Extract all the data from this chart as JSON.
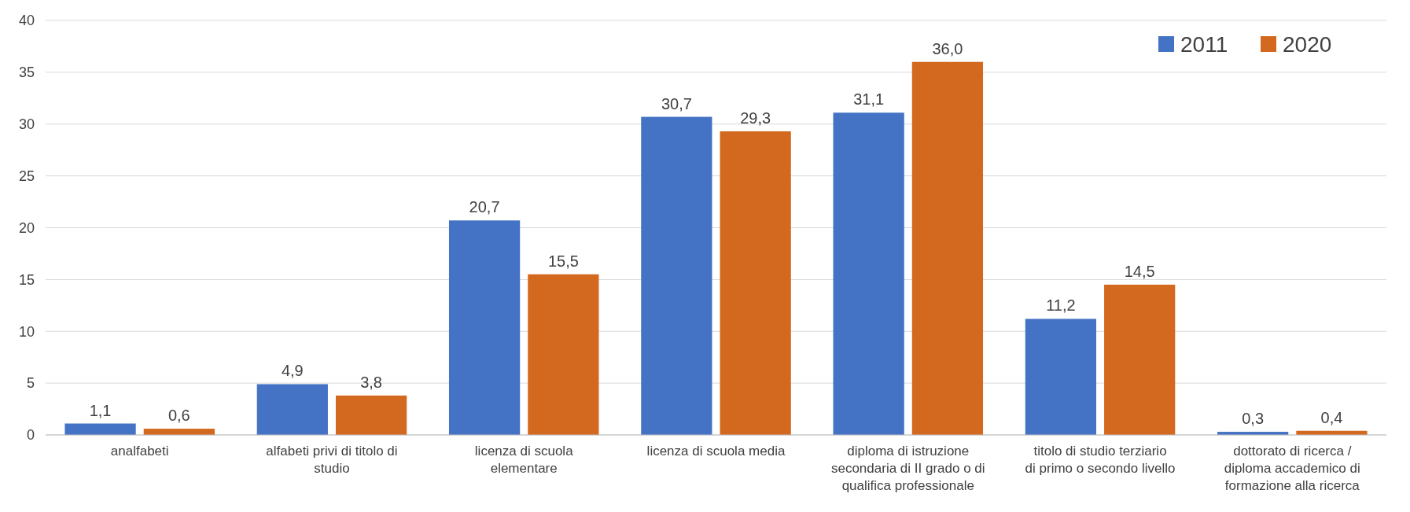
{
  "chart_data": {
    "type": "bar",
    "categories": [
      "analfabeti",
      "alfabeti privi di titolo di studio",
      "licenza di scuola elementare",
      "licenza di scuola media",
      "diploma di istruzione secondaria di II grado o di qualifica professionale",
      "titolo di studio terziario di primo o secondo livello",
      "dottorato di ricerca / diploma accademico di formazione alla ricerca"
    ],
    "series": [
      {
        "name": "2011",
        "color": "#4472c4",
        "values": [
          1.1,
          4.9,
          20.7,
          30.7,
          31.1,
          11.2,
          0.3
        ]
      },
      {
        "name": "2020",
        "color": "#d2691e",
        "values": [
          0.6,
          3.8,
          15.5,
          29.3,
          36.0,
          14.5,
          0.4
        ]
      }
    ],
    "value_labels": [
      [
        "1,1",
        "4,9",
        "20,7",
        "30,7",
        "31,1",
        "11,2",
        "0,3"
      ],
      [
        "0,6",
        "3,8",
        "15,5",
        "29,3",
        "36,0",
        "14,5",
        "0,4"
      ]
    ],
    "ylim": [
      0,
      40
    ],
    "yticks": [
      0,
      5,
      10,
      15,
      20,
      25,
      30,
      35,
      40
    ],
    "grid": "y",
    "legend": "top right"
  }
}
